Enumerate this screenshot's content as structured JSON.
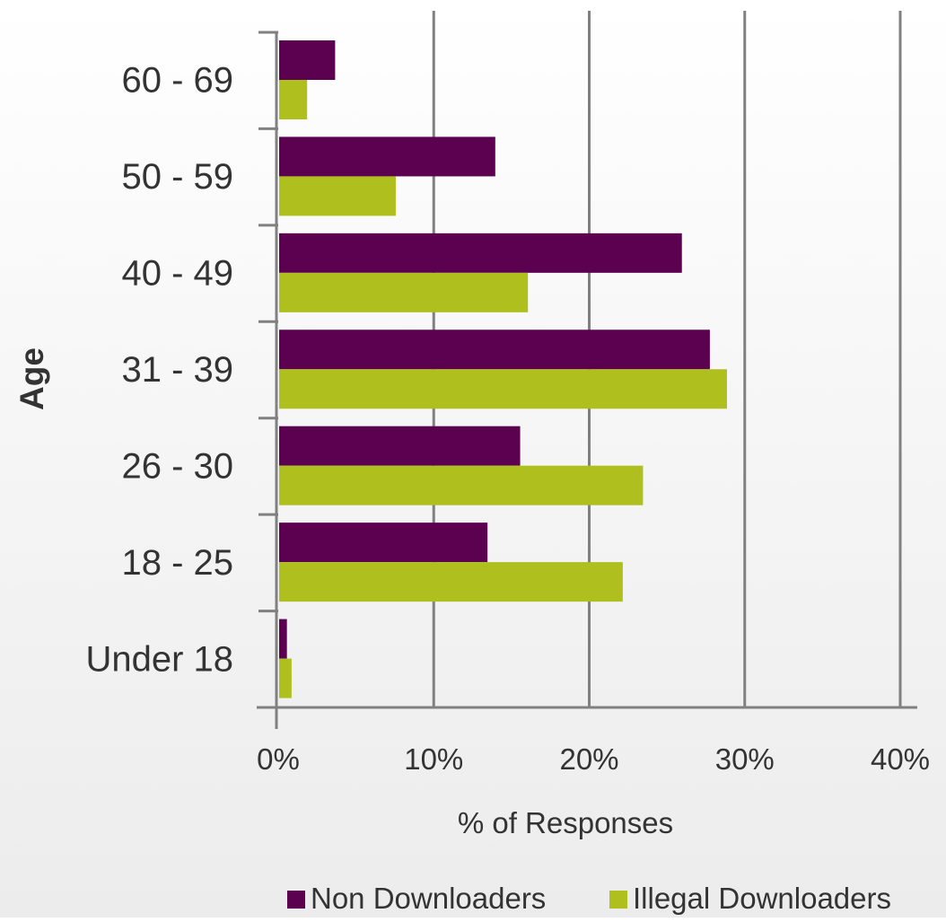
{
  "chart_data": {
    "type": "bar",
    "orientation": "horizontal",
    "title": "",
    "xlabel": "% of Responses",
    "ylabel": "Age",
    "categories": [
      "60 - 69",
      "50 - 59",
      "40 - 49",
      "31 - 39",
      "26 - 30",
      "18 - 25",
      "Under 18"
    ],
    "x_ticks": [
      "0%",
      "10%",
      "20%",
      "30%",
      "40%"
    ],
    "x_tick_values": [
      0,
      10,
      20,
      30,
      40
    ],
    "xlim": [
      0,
      40
    ],
    "grid": "vertical",
    "legend_position": "bottom-right",
    "series": [
      {
        "name": "Non Downloaders",
        "color": "#5c0050",
        "values": [
          3.6,
          13.9,
          25.9,
          27.7,
          15.5,
          13.4,
          0.5
        ]
      },
      {
        "name": "Illegal Downloaders",
        "color": "#afbf1e",
        "values": [
          1.8,
          7.5,
          16.0,
          28.8,
          23.4,
          22.1,
          0.8
        ]
      }
    ]
  }
}
